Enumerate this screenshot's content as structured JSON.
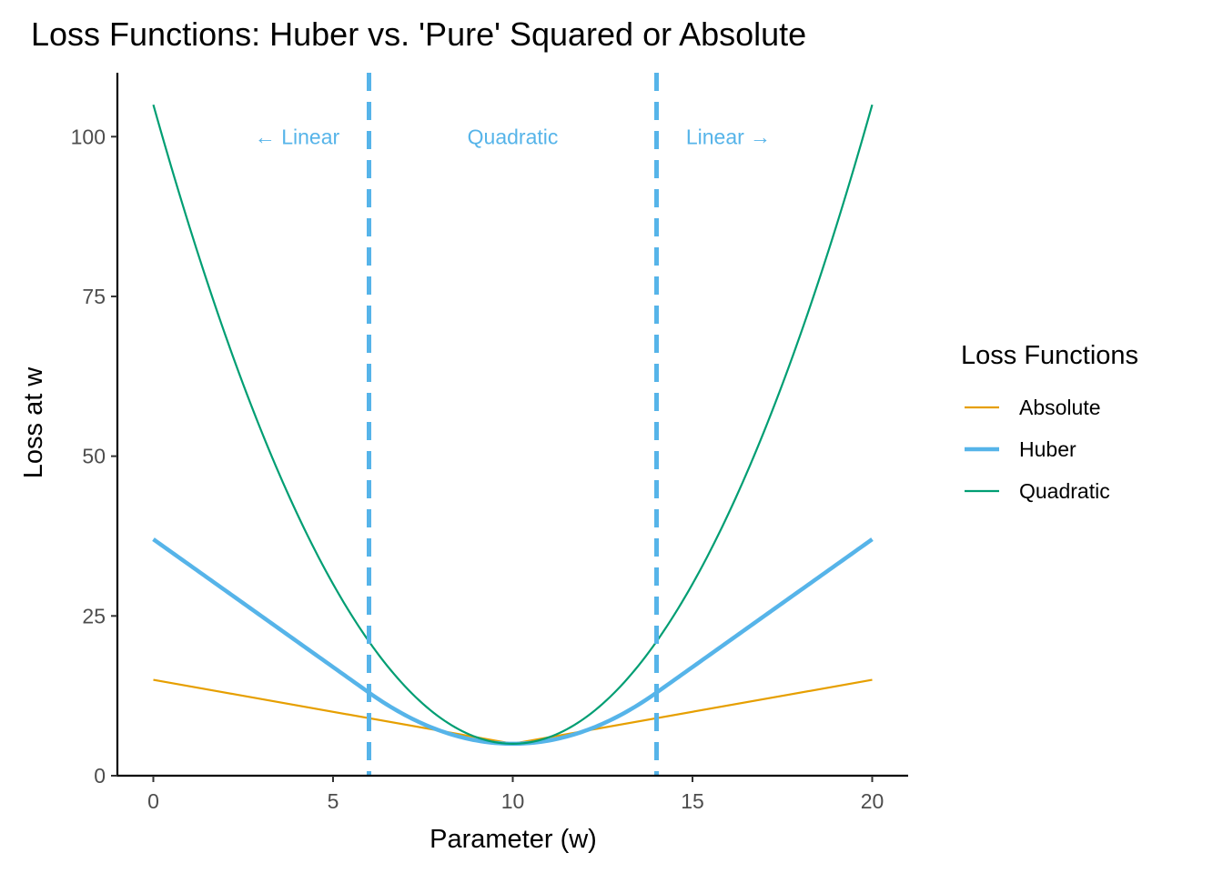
{
  "chart_data": {
    "type": "line",
    "title": "Loss Functions: Huber vs. 'Pure' Squared or Absolute",
    "xlabel": "Parameter (w)",
    "ylabel": "Loss at w",
    "xlim": [
      -1,
      21
    ],
    "ylim": [
      0,
      110
    ],
    "x_ticks": [
      0,
      5,
      10,
      15,
      20
    ],
    "y_ticks": [
      0,
      25,
      50,
      75,
      100
    ],
    "x_tick_labels": [
      "0",
      "5",
      "10",
      "15",
      "20"
    ],
    "y_tick_labels": [
      "0",
      "25",
      "50",
      "75",
      "100"
    ],
    "grid": false,
    "legend": {
      "title": "Loss Functions",
      "position": "right",
      "entries": [
        "Absolute",
        "Huber",
        "Quadratic"
      ]
    },
    "series": [
      {
        "name": "Absolute",
        "color": "#E69F00",
        "x": [
          0,
          10,
          20
        ],
        "y": [
          15,
          5,
          15
        ]
      },
      {
        "name": "Huber",
        "color": "#56B4E9",
        "x": [
          0,
          6,
          7,
          8,
          9,
          10,
          11,
          12,
          13,
          14,
          20
        ],
        "y": [
          37,
          13,
          9.5,
          7,
          5.5,
          5,
          5.5,
          7,
          9.5,
          13,
          37
        ]
      },
      {
        "name": "Quadratic",
        "color": "#009E73",
        "x": [
          0,
          1,
          2,
          3,
          4,
          5,
          6,
          7,
          8,
          9,
          10,
          11,
          12,
          13,
          14,
          15,
          16,
          17,
          18,
          19,
          20
        ],
        "y": [
          105,
          86,
          69,
          54,
          41,
          30,
          21,
          14,
          9,
          6,
          5,
          6,
          9,
          14,
          21,
          30,
          41,
          54,
          69,
          86,
          105
        ]
      }
    ],
    "vlines": [
      {
        "x": 6,
        "color": "#56B4E9",
        "style": "dashed"
      },
      {
        "x": 14,
        "color": "#56B4E9",
        "style": "dashed"
      }
    ],
    "annotations": [
      {
        "text": "← Linear",
        "x": 4,
        "y": 100,
        "color": "#56B4E9"
      },
      {
        "text": "Quadratic",
        "x": 10,
        "y": 100,
        "color": "#56B4E9"
      },
      {
        "text": "Linear →",
        "x": 16,
        "y": 100,
        "color": "#56B4E9"
      }
    ]
  }
}
